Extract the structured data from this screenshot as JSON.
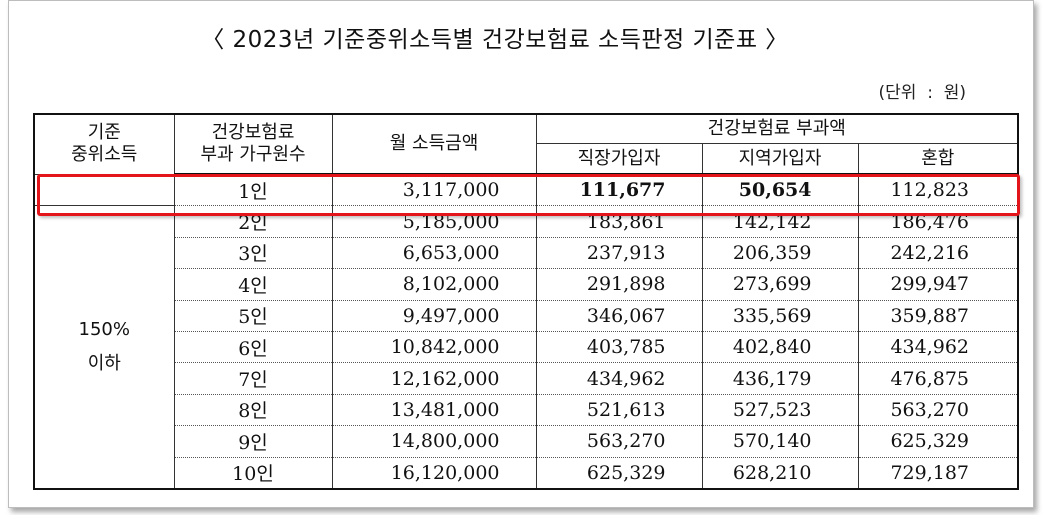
{
  "title": "〈 2023년 기준중위소득별 건강보험료 소득판정 기준표 〉",
  "unit": "(단위  :  원)",
  "headers": {
    "group_line1": "기준",
    "group_line2": "중위소득",
    "household_line1": "건강보험료",
    "household_line2": "부과 가구원수",
    "income": "월 소득금액",
    "premium_group": "건강보험료 부과액",
    "employee": "직장가입자",
    "regional": "지역가입자",
    "mixed": "혼합"
  },
  "group_label_line1": "150%",
  "group_label_line2": "이하",
  "rows": [
    {
      "household": "1인",
      "income": "3,117,000",
      "employee": "111,677",
      "regional": "50,654",
      "mixed": "112,823"
    },
    {
      "household": "2인",
      "income": "5,185,000",
      "employee": "183,861",
      "regional": "142,142",
      "mixed": "186,476"
    },
    {
      "household": "3인",
      "income": "6,653,000",
      "employee": "237,913",
      "regional": "206,359",
      "mixed": "242,216"
    },
    {
      "household": "4인",
      "income": "8,102,000",
      "employee": "291,898",
      "regional": "273,699",
      "mixed": "299,947"
    },
    {
      "household": "5인",
      "income": "9,497,000",
      "employee": "346,067",
      "regional": "335,569",
      "mixed": "359,887"
    },
    {
      "household": "6인",
      "income": "10,842,000",
      "employee": "403,785",
      "regional": "402,840",
      "mixed": "434,962"
    },
    {
      "household": "7인",
      "income": "12,162,000",
      "employee": "434,962",
      "regional": "436,179",
      "mixed": "476,875"
    },
    {
      "household": "8인",
      "income": "13,481,000",
      "employee": "521,613",
      "regional": "527,523",
      "mixed": "563,270"
    },
    {
      "household": "9인",
      "income": "14,800,000",
      "employee": "563,270",
      "regional": "570,140",
      "mixed": "625,329"
    },
    {
      "household": "10인",
      "income": "16,120,000",
      "employee": "625,329",
      "regional": "628,210",
      "mixed": "729,187"
    }
  ],
  "highlight_color": "#e3151a"
}
